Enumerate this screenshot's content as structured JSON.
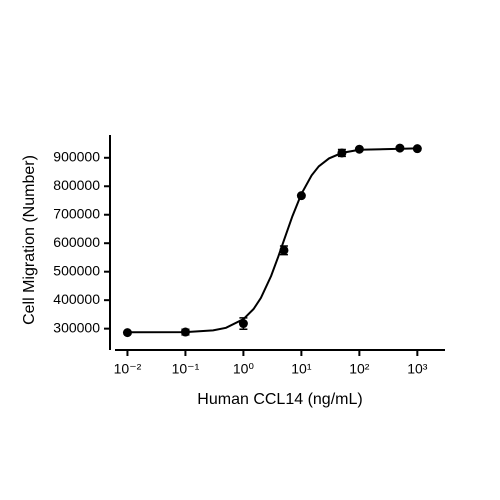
{
  "chart_data": {
    "type": "scatter",
    "x_label": "Human CCL14 (ng/mL)",
    "y_label": "Cell Migration (Number)",
    "x_log": true,
    "xlim": [
      0.005,
      3000
    ],
    "xticks": [
      {
        "value": 0.01,
        "label": "10⁻²"
      },
      {
        "value": 0.1,
        "label": "10⁻¹"
      },
      {
        "value": 1,
        "label": "10⁰"
      },
      {
        "value": 10,
        "label": "10¹"
      },
      {
        "value": 100,
        "label": "10²"
      },
      {
        "value": 1000,
        "label": "10³"
      }
    ],
    "ylim": [
      225000,
      980000
    ],
    "yticks": [
      300000,
      400000,
      500000,
      600000,
      700000,
      800000,
      900000
    ],
    "color": "#000000",
    "x": [
      0.01,
      0.1,
      1,
      5,
      10,
      50,
      100,
      500,
      1000
    ],
    "values": [
      286000,
      288000,
      318000,
      575000,
      767000,
      917000,
      930000,
      934000,
      932000
    ],
    "errors": [
      null,
      10000,
      20000,
      15000,
      null,
      12000,
      null,
      null,
      null
    ],
    "fit": {
      "x": [
        0.01,
        0.1,
        0.3,
        0.5,
        1,
        1.5,
        2,
        3,
        4,
        5,
        7,
        10,
        15,
        20,
        30,
        50,
        100,
        1000
      ],
      "values": [
        287000,
        288000,
        294000,
        303000,
        333000,
        369000,
        408000,
        485000,
        553000,
        610000,
        695000,
        773000,
        838000,
        870000,
        898000,
        917000,
        928000,
        933000
      ]
    }
  }
}
